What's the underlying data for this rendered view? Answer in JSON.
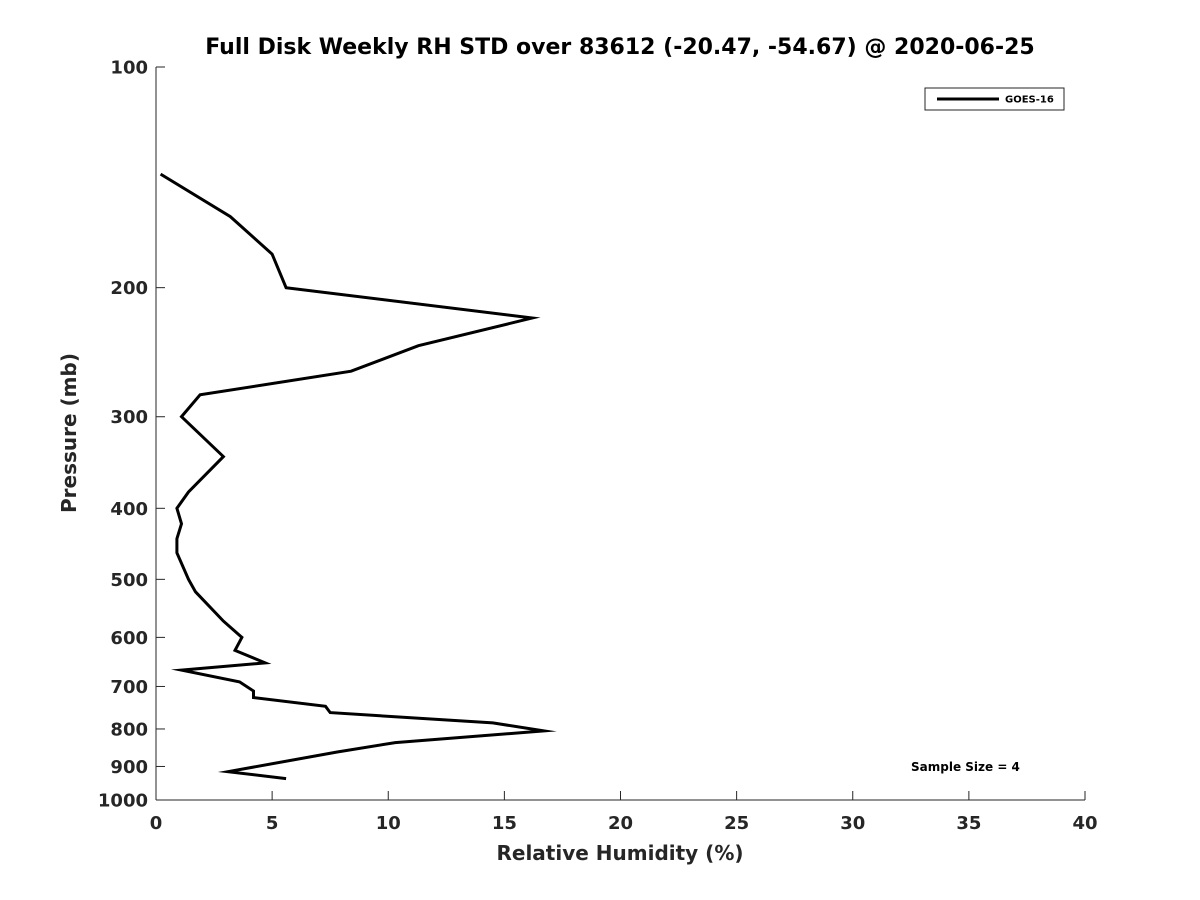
{
  "chart_data": {
    "type": "line",
    "title": "Full Disk Weekly RH STD over 83612 (-20.47, -54.67) @ 2020-06-25",
    "xlabel": "Relative Humidity (%)",
    "ylabel": "Pressure (mb)",
    "xlim": [
      0,
      40
    ],
    "ylim": [
      100,
      1000
    ],
    "yscale": "log",
    "y_reversed": true,
    "grid": false,
    "x_ticks": [
      0,
      5,
      10,
      15,
      20,
      25,
      30,
      35,
      40
    ],
    "x_tick_labels": [
      "0",
      "5",
      "10",
      "15",
      "20",
      "25",
      "30",
      "35",
      "40"
    ],
    "y_ticks": [
      100,
      200,
      300,
      400,
      500,
      600,
      700,
      800,
      900,
      1000
    ],
    "y_tick_labels": [
      "100",
      "200",
      "300",
      "400",
      "500",
      "600",
      "700",
      "800",
      "900",
      "1000"
    ],
    "legend": {
      "position": "top-right",
      "entries": [
        "GOES-16"
      ]
    },
    "annotation": "Sample Size = 4",
    "series": [
      {
        "name": "GOES-16",
        "color": "#000000",
        "points": [
          [
            0.2,
            140
          ],
          [
            3.2,
            160
          ],
          [
            5.0,
            180
          ],
          [
            5.6,
            200
          ],
          [
            16.2,
            220
          ],
          [
            11.3,
            240
          ],
          [
            8.4,
            260
          ],
          [
            1.9,
            280
          ],
          [
            1.1,
            300
          ],
          [
            2.9,
            340
          ],
          [
            1.4,
            380
          ],
          [
            0.9,
            400
          ],
          [
            1.1,
            420
          ],
          [
            0.9,
            440
          ],
          [
            0.9,
            460
          ],
          [
            1.4,
            500
          ],
          [
            1.7,
            520
          ],
          [
            2.9,
            570
          ],
          [
            3.7,
            600
          ],
          [
            3.4,
            625
          ],
          [
            4.7,
            650
          ],
          [
            1.1,
            665
          ],
          [
            3.6,
            690
          ],
          [
            4.2,
            710
          ],
          [
            4.2,
            725
          ],
          [
            7.3,
            745
          ],
          [
            7.5,
            760
          ],
          [
            14.5,
            785
          ],
          [
            16.7,
            805
          ],
          [
            10.3,
            835
          ],
          [
            7.8,
            860
          ],
          [
            3.1,
            915
          ],
          [
            5.6,
            935
          ]
        ]
      }
    ]
  }
}
